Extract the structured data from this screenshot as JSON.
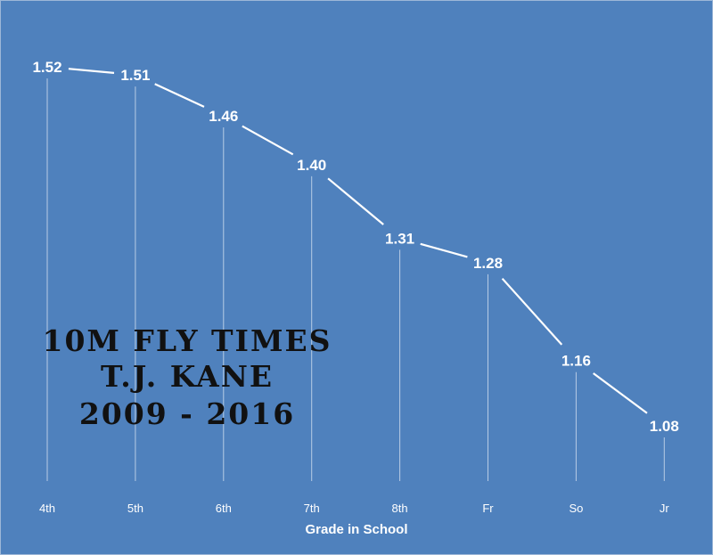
{
  "chart_data": {
    "type": "line",
    "categories": [
      "4th",
      "5th",
      "6th",
      "7th",
      "8th",
      "Fr",
      "So",
      "Jr"
    ],
    "values": [
      1.52,
      1.51,
      1.46,
      1.4,
      1.31,
      1.28,
      1.16,
      1.08
    ],
    "data_labels": [
      "1.52",
      "1.51",
      "1.46",
      "1.40",
      "1.31",
      "1.28",
      "1.16",
      "1.08"
    ],
    "title_lines": [
      "10M FLY TIMES",
      "T.J. KANE",
      "2009 - 2016"
    ],
    "xlabel": "Grade in School",
    "ylabel": "",
    "grid": false,
    "drop_lines": true,
    "colors": {
      "background": "#4f81bd",
      "line": "#ffffff",
      "drop_line": "#dbe6f3",
      "title_text": "#111111",
      "border": "#9db7d8"
    }
  }
}
